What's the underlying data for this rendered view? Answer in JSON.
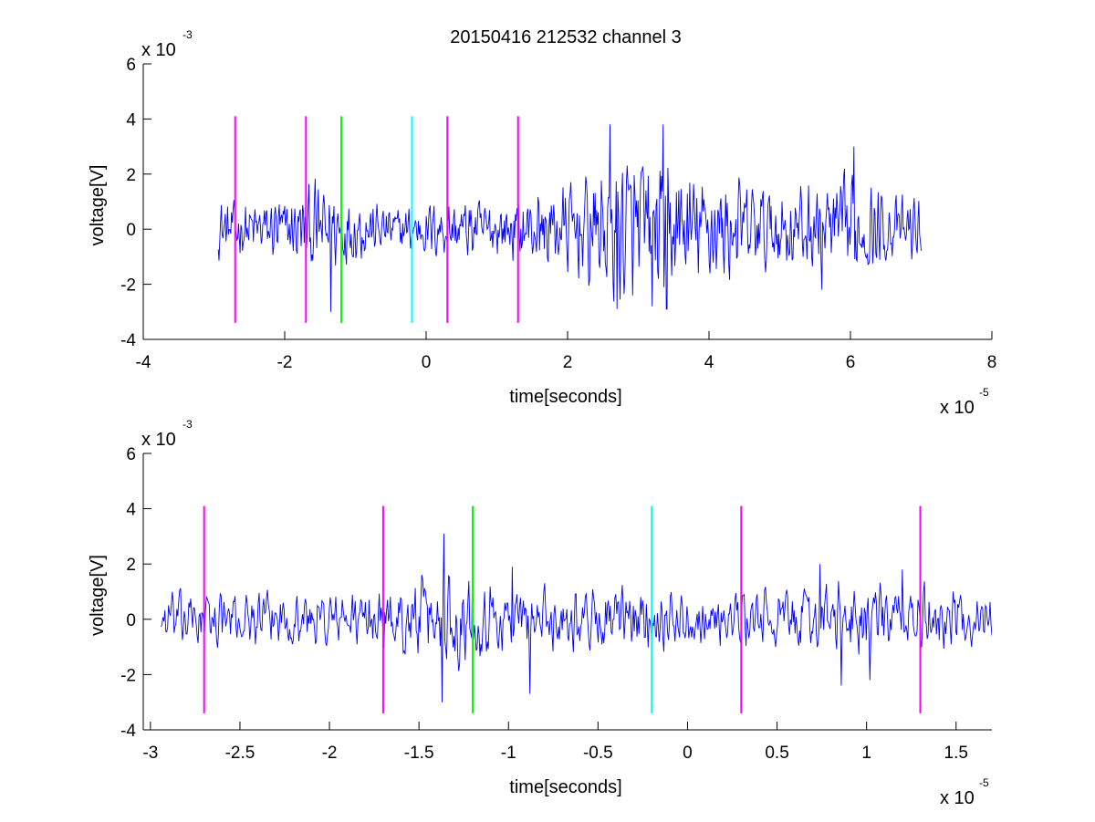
{
  "figure": {
    "title": "20150416 212532 channel 3",
    "background": "#ffffff"
  },
  "chart_data": [
    {
      "type": "line",
      "title": "20150416 212532 channel 3",
      "xlabel": "time[seconds]",
      "ylabel": "voltage[V]",
      "x_multiplier_label": "x 10",
      "x_multiplier_exp": "-5",
      "y_multiplier_label": "x 10",
      "y_multiplier_exp": "-3",
      "xlim": [
        -4,
        8
      ],
      "ylim": [
        -4,
        6
      ],
      "xticks": [
        -4,
        -2,
        0,
        2,
        4,
        6,
        8
      ],
      "xtick_labels": [
        "-4",
        "-2",
        "0",
        "2",
        "4",
        "6",
        "8"
      ],
      "yticks": [
        -4,
        -2,
        0,
        2,
        4,
        6
      ],
      "ytick_labels": [
        "-4",
        "-2",
        "0",
        "2",
        "4",
        "6"
      ],
      "grid": false,
      "series": [
        {
          "color": "#0000ff",
          "x_start": -2.94,
          "x_end": 7.0,
          "envelope": [
            [
              -2.94,
              0.9
            ],
            [
              -2.5,
              0.9
            ],
            [
              -2.0,
              1.0
            ],
            [
              -1.6,
              1.4
            ],
            [
              -1.3,
              1.4
            ],
            [
              -1.0,
              1.1
            ],
            [
              -0.6,
              0.7
            ],
            [
              -0.2,
              0.8
            ],
            [
              0.5,
              1.0
            ],
            [
              1.0,
              0.9
            ],
            [
              1.6,
              1.2
            ],
            [
              2.2,
              1.6
            ],
            [
              2.6,
              2.3
            ],
            [
              3.0,
              2.4
            ],
            [
              3.4,
              2.2
            ],
            [
              3.8,
              1.8
            ],
            [
              4.4,
              1.6
            ],
            [
              5.0,
              1.3
            ],
            [
              5.6,
              1.5
            ],
            [
              6.0,
              1.7
            ],
            [
              6.5,
              1.1
            ],
            [
              7.0,
              0.9
            ]
          ],
          "peaks": [
            [
              -1.35,
              -3.0
            ],
            [
              2.6,
              3.8
            ],
            [
              2.7,
              -2.9
            ],
            [
              3.2,
              -2.8
            ],
            [
              3.35,
              3.8
            ],
            [
              3.4,
              -2.9
            ],
            [
              6.05,
              3.0
            ],
            [
              5.6,
              -2.2
            ]
          ]
        }
      ],
      "markers": [
        {
          "x": -2.7,
          "color": "#ff00ff",
          "y_range": [
            -3.4,
            4.1
          ]
        },
        {
          "x": -1.7,
          "color": "#ff00ff",
          "y_range": [
            -3.4,
            4.1
          ]
        },
        {
          "x": -1.2,
          "color": "#00ff00",
          "y_range": [
            -3.4,
            4.1
          ]
        },
        {
          "x": -0.2,
          "color": "#00ffff",
          "y_range": [
            -3.4,
            4.1
          ]
        },
        {
          "x": 0.3,
          "color": "#ff00ff",
          "y_range": [
            -3.4,
            4.1
          ]
        },
        {
          "x": 1.3,
          "color": "#ff00ff",
          "y_range": [
            -3.4,
            4.1
          ]
        }
      ]
    },
    {
      "type": "line",
      "title": "",
      "xlabel": "time[seconds]",
      "ylabel": "voltage[V]",
      "x_multiplier_label": "x 10",
      "x_multiplier_exp": "-5",
      "y_multiplier_label": "x 10",
      "y_multiplier_exp": "-3",
      "xlim": [
        -3.04,
        1.7
      ],
      "ylim": [
        -4,
        6
      ],
      "xticks": [
        -3,
        -2.5,
        -2,
        -1.5,
        -1,
        -0.5,
        0,
        0.5,
        1,
        1.5
      ],
      "xtick_labels": [
        "-3",
        "-2.5",
        "-2",
        "-1.5",
        "-1",
        "-0.5",
        "0",
        "0.5",
        "1",
        "1.5"
      ],
      "yticks": [
        -4,
        -2,
        0,
        2,
        4,
        6
      ],
      "ytick_labels": [
        "-4",
        "-2",
        "0",
        "2",
        "4",
        "6"
      ],
      "grid": false,
      "series": [
        {
          "color": "#0000ff",
          "x_start": -2.94,
          "x_end": 1.7,
          "envelope": [
            [
              -2.94,
              0.9
            ],
            [
              -2.5,
              0.8
            ],
            [
              -2.0,
              0.9
            ],
            [
              -1.7,
              0.9
            ],
            [
              -1.5,
              1.3
            ],
            [
              -1.3,
              1.5
            ],
            [
              -1.1,
              1.2
            ],
            [
              -0.9,
              1.0
            ],
            [
              -0.6,
              1.0
            ],
            [
              -0.3,
              1.0
            ],
            [
              0.0,
              0.8
            ],
            [
              0.3,
              0.8
            ],
            [
              0.6,
              1.0
            ],
            [
              0.9,
              1.2
            ],
            [
              1.2,
              1.0
            ],
            [
              1.5,
              0.9
            ],
            [
              1.7,
              0.8
            ]
          ],
          "peaks": [
            [
              -1.36,
              3.1
            ],
            [
              -1.37,
              -3.0
            ],
            [
              -1.2,
              2.0
            ],
            [
              -0.98,
              1.9
            ],
            [
              -0.88,
              -2.7
            ],
            [
              0.86,
              -2.4
            ],
            [
              1.02,
              -2.2
            ],
            [
              0.74,
              2.0
            ],
            [
              1.2,
              1.8
            ]
          ]
        }
      ],
      "markers": [
        {
          "x": -2.7,
          "color": "#ff00ff",
          "y_range": [
            -3.4,
            4.1
          ]
        },
        {
          "x": -1.7,
          "color": "#ff00ff",
          "y_range": [
            -3.4,
            4.1
          ]
        },
        {
          "x": -1.2,
          "color": "#00ff00",
          "y_range": [
            -3.4,
            4.1
          ]
        },
        {
          "x": -0.2,
          "color": "#00ffff",
          "y_range": [
            -3.4,
            4.1
          ]
        },
        {
          "x": 0.3,
          "color": "#ff00ff",
          "y_range": [
            -3.4,
            4.1
          ]
        },
        {
          "x": 1.3,
          "color": "#ff00ff",
          "y_range": [
            -3.4,
            4.1
          ]
        }
      ]
    }
  ]
}
